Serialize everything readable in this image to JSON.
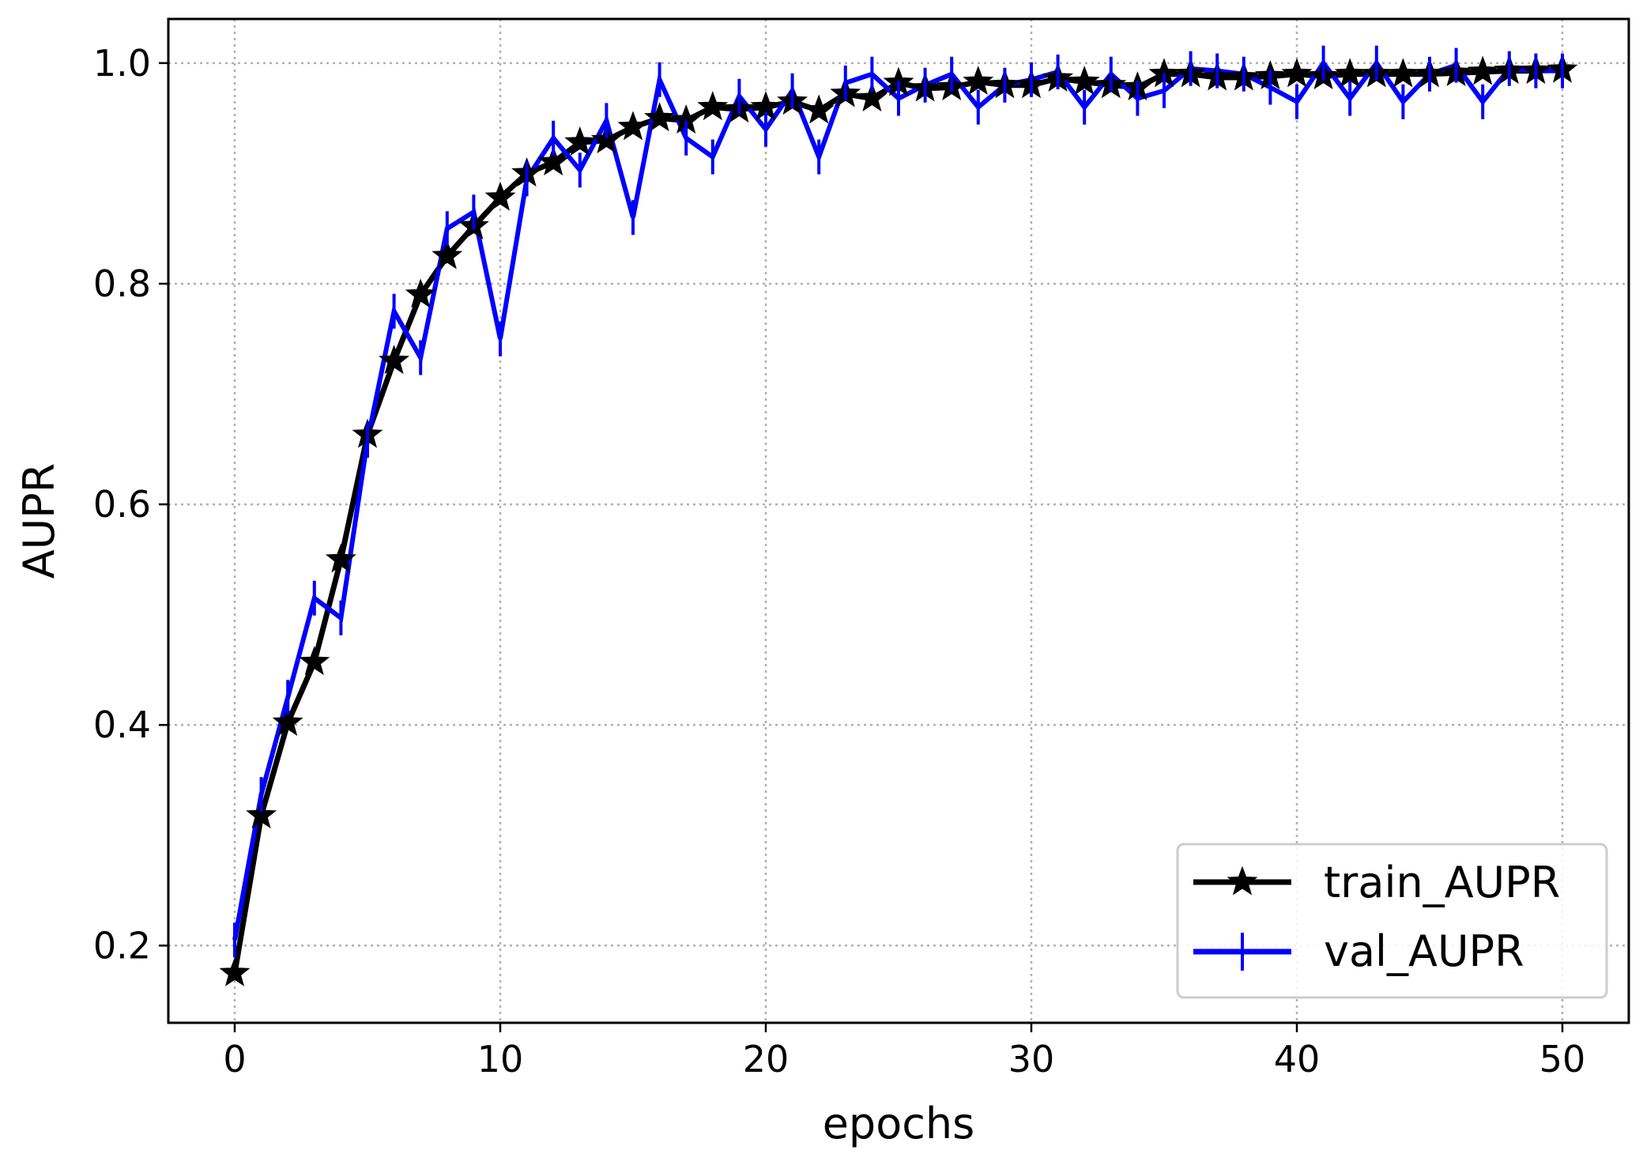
{
  "chart_data": {
    "type": "line",
    "title": "",
    "xlabel": "epochs",
    "ylabel": "AUPR",
    "xlim": [
      -2.5,
      52.5
    ],
    "ylim": [
      0.13,
      1.04
    ],
    "xticks": [
      0,
      10,
      20,
      30,
      40,
      50
    ],
    "yticks": [
      0.2,
      0.4,
      0.6,
      0.8,
      1.0
    ],
    "xtick_labels": [
      "0",
      "10",
      "20",
      "30",
      "40",
      "50"
    ],
    "ytick_labels": [
      "0.2",
      "0.4",
      "0.6",
      "0.8",
      "1.0"
    ],
    "grid": true,
    "legend_position": "bottom-right",
    "x": [
      0,
      1,
      2,
      3,
      4,
      5,
      6,
      7,
      8,
      9,
      10,
      11,
      12,
      13,
      14,
      15,
      16,
      17,
      18,
      19,
      20,
      21,
      22,
      23,
      24,
      25,
      26,
      27,
      28,
      29,
      30,
      31,
      32,
      33,
      34,
      35,
      36,
      37,
      38,
      39,
      40,
      41,
      42,
      43,
      44,
      45,
      46,
      47,
      48,
      49,
      50
    ],
    "series": [
      {
        "name": "train_AUPR",
        "color": "#000000",
        "marker": "star",
        "values": [
          0.175,
          0.318,
          0.402,
          0.457,
          0.55,
          0.663,
          0.73,
          0.79,
          0.825,
          0.852,
          0.878,
          0.9,
          0.91,
          0.928,
          0.93,
          0.942,
          0.95,
          0.948,
          0.96,
          0.958,
          0.96,
          0.965,
          0.957,
          0.972,
          0.968,
          0.982,
          0.977,
          0.978,
          0.983,
          0.98,
          0.98,
          0.986,
          0.983,
          0.98,
          0.978,
          0.99,
          0.99,
          0.987,
          0.987,
          0.988,
          0.99,
          0.988,
          0.99,
          0.99,
          0.99,
          0.99,
          0.991,
          0.992,
          0.993,
          0.993,
          0.994
        ]
      },
      {
        "name": "val_AUPR",
        "color": "#0000ff",
        "marker": "plus",
        "values": [
          0.205,
          0.337,
          0.425,
          0.515,
          0.497,
          0.658,
          0.775,
          0.733,
          0.85,
          0.865,
          0.75,
          0.895,
          0.932,
          0.903,
          0.948,
          0.86,
          0.985,
          0.932,
          0.915,
          0.97,
          0.94,
          0.975,
          0.915,
          0.982,
          0.99,
          0.968,
          0.98,
          0.99,
          0.96,
          0.98,
          0.985,
          0.992,
          0.96,
          0.99,
          0.968,
          0.975,
          0.995,
          0.993,
          0.99,
          0.978,
          0.965,
          1.0,
          0.968,
          1.0,
          0.965,
          0.99,
          0.998,
          0.965,
          0.995,
          0.993,
          0.993
        ]
      }
    ]
  }
}
